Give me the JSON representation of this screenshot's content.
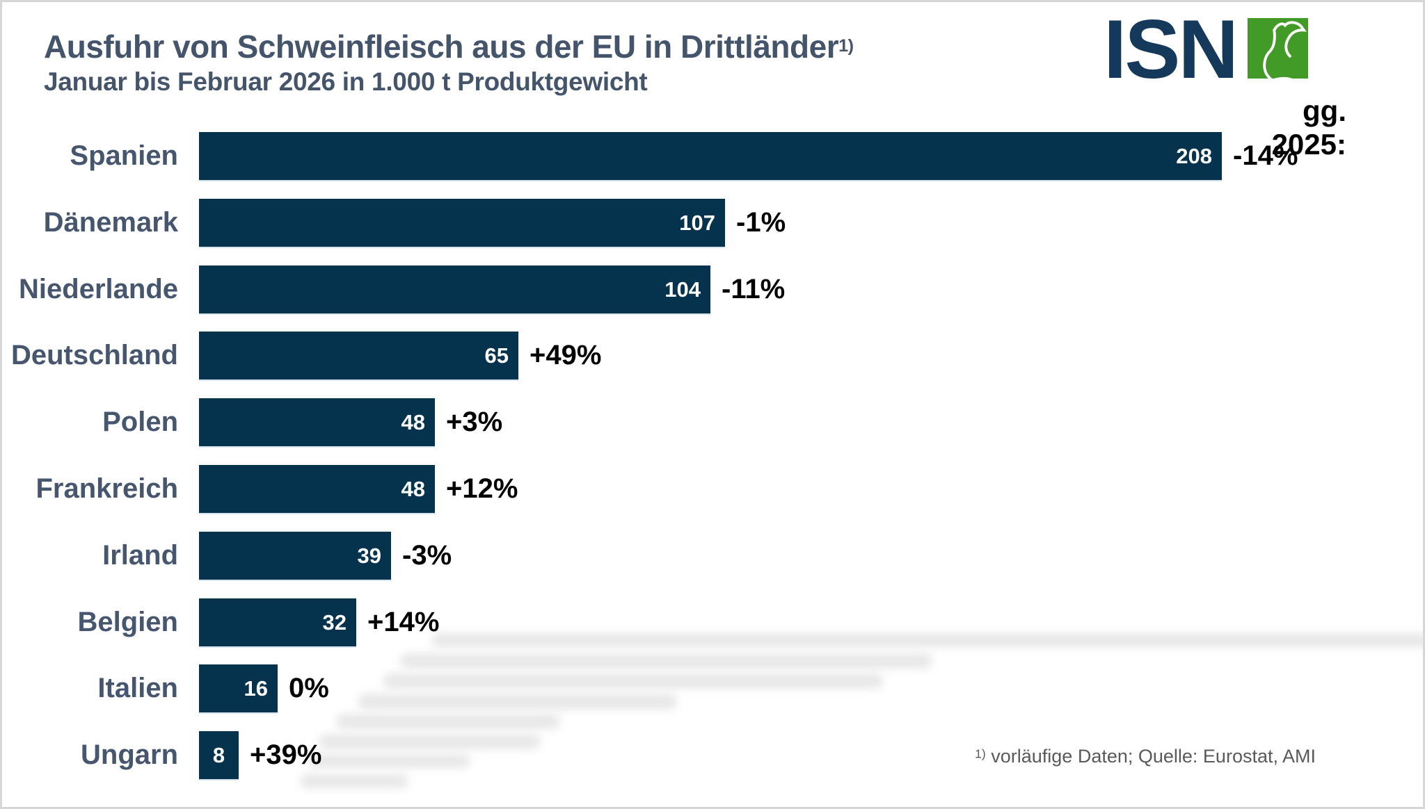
{
  "header": {
    "title": "Ausfuhr von Schweinfleisch aus der EU in Drittländer",
    "title_footnote_marker": "1)",
    "subtitle": "Januar bis Februar 2026 in 1.000 t Produktgewicht"
  },
  "logo": {
    "text": "ISN",
    "mark": "pig-outline-in-green-square"
  },
  "comparison_label": "gg. 2025:",
  "footnote": {
    "marker": "1)",
    "text": "vorläufige Daten; Quelle: Eurostat, AMI"
  },
  "colors": {
    "bar": "#05334D",
    "title_text": "#44546A",
    "category_label": "#47566F",
    "bar_value_text": "#FFFFFF",
    "percent_text": "#000000",
    "logo_navy": "#15395B",
    "logo_green": "#429B26",
    "footnote_text": "#595959",
    "watermark": "#E8E8E8"
  },
  "chart_data": {
    "type": "bar",
    "orientation": "horizontal",
    "title": "Ausfuhr von Schweinfleisch aus der EU in Drittländer (1)",
    "subtitle": "Januar bis Februar 2026 in 1.000 t Produktgewicht",
    "unit": "1.000 t Produktgewicht",
    "comparison_header": "gg. 2025:",
    "categories": [
      "Spanien",
      "Dänemark",
      "Niederlande",
      "Deutschland",
      "Polen",
      "Frankreich",
      "Irland",
      "Belgien",
      "Italien",
      "Ungarn"
    ],
    "values": [
      208,
      107,
      104,
      65,
      48,
      48,
      39,
      32,
      16,
      8
    ],
    "change_vs_2025": [
      "-14%",
      "-1%",
      "-11%",
      "+49%",
      "+3%",
      "+12%",
      "-3%",
      "+14%",
      "0%",
      "+39%"
    ],
    "xlim": [
      0,
      208
    ],
    "grid": false,
    "legend": false,
    "value_labels_inside_bar": true,
    "source": "Eurostat, AMI"
  }
}
